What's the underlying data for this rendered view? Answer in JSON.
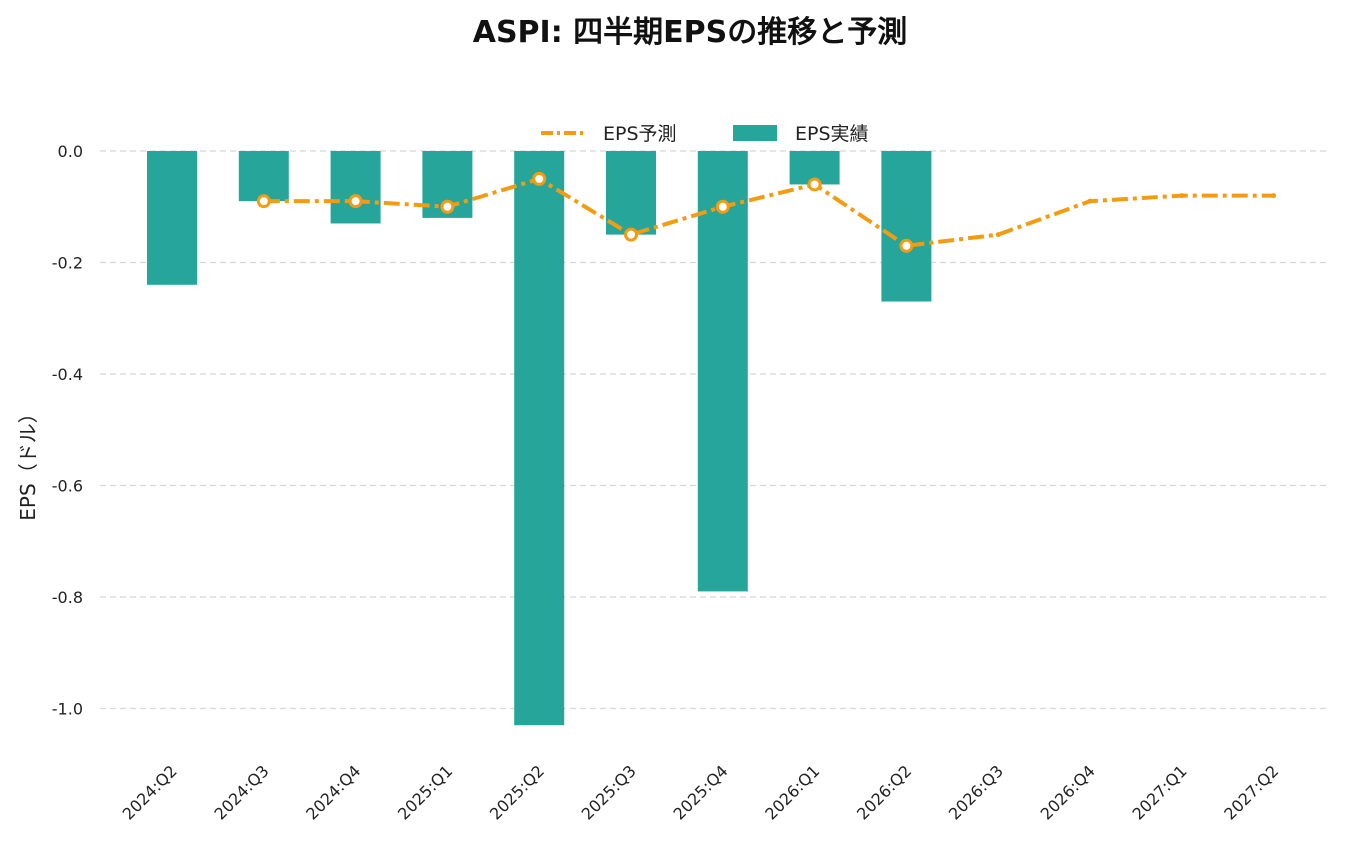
{
  "chart_data": {
    "type": "bar",
    "title": "ASPI: 四半期EPSの推移と予測",
    "xlabel": "",
    "ylabel": "EPS（ドル）",
    "ylim": [
      -1.08,
      0.05
    ],
    "yticks": [
      0.0,
      -0.2,
      -0.4,
      -0.6,
      -0.8,
      -1.0
    ],
    "ytick_labels": [
      "0.0",
      "-0.2",
      "-0.4",
      "-0.6",
      "-0.8",
      "-1.0"
    ],
    "grid": true,
    "legend_position": "top-center",
    "categories": [
      "2024:Q2",
      "2024:Q3",
      "2024:Q4",
      "2025:Q1",
      "2025:Q2",
      "2025:Q3",
      "2025:Q4",
      "2026:Q1",
      "2026:Q2",
      "2026:Q3",
      "2026:Q4",
      "2027:Q1",
      "2027:Q2"
    ],
    "series": [
      {
        "name": "EPS予測",
        "kind": "line",
        "color": "#F39C12",
        "values": [
          null,
          -0.09,
          -0.09,
          -0.1,
          -0.05,
          -0.15,
          -0.1,
          -0.06,
          -0.17,
          -0.15,
          -0.09,
          -0.08,
          -0.08
        ]
      },
      {
        "name": "EPS実績",
        "kind": "bar",
        "color": "#26A69A",
        "values": [
          -0.24,
          -0.09,
          -0.13,
          -0.12,
          -1.03,
          -0.15,
          -0.79,
          -0.06,
          -0.27,
          null,
          null,
          null,
          null
        ]
      }
    ]
  }
}
